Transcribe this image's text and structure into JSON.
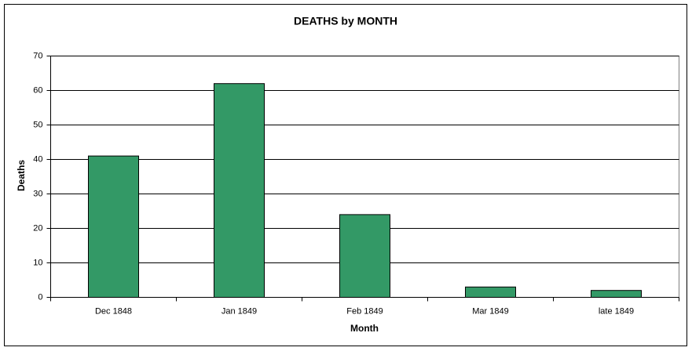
{
  "chart_data": {
    "type": "bar",
    "title": "DEATHS by MONTH",
    "x_label": "Month",
    "y_label": "Deaths",
    "categories": [
      "Dec 1848",
      "Jan 1849",
      "Feb 1849",
      "Mar 1849",
      "late 1849"
    ],
    "values": [
      41,
      62,
      24,
      3,
      2
    ],
    "color": "#339966",
    "ylim": [
      0,
      70
    ],
    "yticks": [
      0,
      10,
      20,
      30,
      40,
      50,
      60,
      70
    ],
    "grid": true
  }
}
